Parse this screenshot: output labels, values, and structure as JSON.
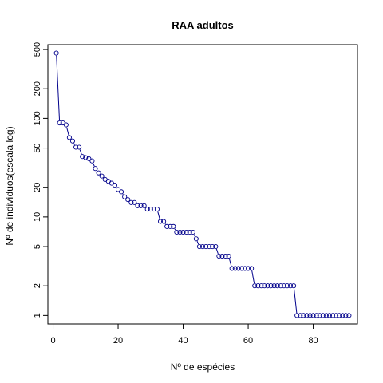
{
  "chart_data": {
    "type": "scatter",
    "title": "RAA adultos",
    "xlabel": "Nº de espécies",
    "ylabel": "Nº de indivíduos(escala log)",
    "y_scale": "log",
    "xlim": [
      -1.6,
      93.6
    ],
    "ylim": [
      0.82,
      560
    ],
    "x_ticks": [
      0,
      20,
      40,
      60,
      80
    ],
    "x_tick_labels": [
      "0",
      "20",
      "40",
      "60",
      "80"
    ],
    "y_ticks": [
      1,
      2,
      5,
      10,
      20,
      50,
      100,
      200,
      500
    ],
    "y_tick_labels": [
      "1",
      "2",
      "5",
      "10",
      "20",
      "50",
      "100",
      "200",
      "500"
    ],
    "grid": false,
    "legend": "none",
    "point_color": "#00008B",
    "line_color": "#00008B",
    "series": [
      {
        "values": [
          460,
          90,
          90,
          86,
          64,
          59,
          51,
          51,
          41,
          40,
          39,
          37,
          31,
          28,
          26,
          24,
          23,
          22,
          21,
          19,
          18,
          16,
          15,
          14,
          14,
          13,
          13,
          13,
          12,
          12,
          12,
          12,
          9,
          9,
          8,
          8,
          8,
          7,
          7,
          7,
          7,
          7,
          7,
          6,
          5,
          5,
          5,
          5,
          5,
          5,
          4,
          4,
          4,
          4,
          3,
          3,
          3,
          3,
          3,
          3,
          3,
          2,
          2,
          2,
          2,
          2,
          2,
          2,
          2,
          2,
          2,
          2,
          2,
          2,
          1,
          1,
          1,
          1,
          1,
          1,
          1,
          1,
          1,
          1,
          1,
          1,
          1,
          1,
          1,
          1,
          1
        ]
      }
    ]
  }
}
